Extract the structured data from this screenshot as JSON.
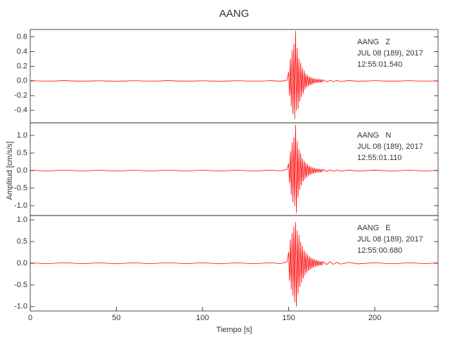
{
  "figure": {
    "title": "AANG",
    "x_label": "Tiempo [s]",
    "y_label": "Amplitud [cm/s/s]"
  },
  "chart_data": [
    {
      "type": "line",
      "annotations": [
        "AANG   Z",
        "JUL 08 (189), 2017",
        "12:55:01.540"
      ],
      "xlim": [
        0,
        236.7
      ],
      "ylim": [
        -0.57,
        0.7
      ],
      "yticks": [
        -0.4,
        -0.2,
        {
          "value": 0,
          "label": "0.0"
        },
        0.2,
        0.4,
        0.6
      ],
      "series": [
        {
          "color": "#ff0000",
          "x": [
            0,
            10,
            20,
            30,
            40,
            50,
            60,
            70,
            80,
            90,
            100,
            110,
            120,
            130,
            140,
            145,
            149,
            150,
            150.5,
            151,
            151.5,
            152,
            152.5,
            153,
            153.5,
            154,
            154.5,
            155,
            155.5,
            156,
            156.5,
            157,
            157.5,
            158,
            158.5,
            159,
            159.5,
            160,
            160.5,
            161,
            161.5,
            162,
            162.5,
            163,
            163.5,
            164,
            164.5,
            165,
            165.5,
            166,
            166.5,
            167,
            167.5,
            168,
            168.5,
            169,
            169.5,
            170,
            172,
            174,
            176,
            178,
            180,
            185,
            190,
            200,
            210,
            220,
            230,
            236
          ],
          "values": [
            0.005,
            -0.004,
            0.006,
            -0.005,
            0.004,
            -0.006,
            0.005,
            -0.004,
            0.006,
            -0.005,
            0.004,
            -0.006,
            0.005,
            -0.004,
            0.006,
            -0.005,
            0.01,
            0.12,
            -0.2,
            0.3,
            -0.35,
            0.42,
            -0.45,
            0.5,
            -0.52,
            0.68,
            -0.4,
            0.45,
            -0.38,
            0.3,
            -0.28,
            0.25,
            -0.22,
            0.18,
            -0.17,
            0.14,
            -0.12,
            0.1,
            -0.09,
            0.08,
            -0.07,
            0.06,
            -0.06,
            0.05,
            -0.05,
            0.04,
            -0.04,
            0.035,
            -0.03,
            0.03,
            -0.025,
            0.025,
            -0.02,
            0.02,
            -0.02,
            0.018,
            -0.015,
            0.015,
            -0.012,
            0.01,
            -0.01,
            0.008,
            -0.008,
            0.007,
            -0.006,
            0.005,
            -0.005,
            0.005,
            -0.004,
            0.004
          ]
        }
      ]
    },
    {
      "type": "line",
      "annotations": [
        "AANG   N",
        "JUL 08 (189), 2017",
        "12:55:01.110"
      ],
      "xlim": [
        0,
        236.7
      ],
      "ylim": [
        -1.28,
        1.36
      ],
      "yticks": [
        {
          "value": -1,
          "label": "-1.0"
        },
        -0.5,
        {
          "value": 0,
          "label": "0.0"
        },
        0.5,
        {
          "value": 1,
          "label": "1.0"
        }
      ],
      "series": [
        {
          "color": "#ff0000",
          "x": [
            0,
            10,
            20,
            30,
            40,
            50,
            60,
            70,
            80,
            90,
            100,
            110,
            120,
            130,
            140,
            145,
            149,
            150,
            150.5,
            151,
            151.5,
            152,
            152.5,
            153,
            153.5,
            154,
            154.5,
            155,
            155.5,
            156,
            156.5,
            157,
            157.5,
            158,
            158.5,
            159,
            159.5,
            160,
            160.5,
            161,
            161.5,
            162,
            162.5,
            163,
            163.5,
            164,
            164.5,
            165,
            165.5,
            166,
            166.5,
            167,
            167.5,
            168,
            168.5,
            169,
            169.5,
            170,
            172,
            174,
            176,
            178,
            180,
            185,
            190,
            200,
            210,
            220,
            230,
            236
          ],
          "values": [
            0.01,
            -0.01,
            0.012,
            -0.01,
            0.01,
            -0.012,
            0.01,
            -0.01,
            0.012,
            -0.01,
            0.01,
            -0.012,
            0.01,
            -0.01,
            0.012,
            -0.01,
            0.03,
            0.2,
            -0.35,
            0.55,
            -0.7,
            0.8,
            -0.9,
            0.95,
            -1.0,
            1.3,
            -1.2,
            0.85,
            -0.75,
            0.6,
            -0.55,
            0.5,
            -0.42,
            0.35,
            -0.3,
            0.28,
            -0.25,
            0.22,
            -0.2,
            0.18,
            -0.15,
            0.14,
            -0.12,
            0.11,
            -0.1,
            0.09,
            -0.08,
            0.07,
            -0.07,
            0.06,
            -0.05,
            0.05,
            -0.045,
            0.04,
            -0.04,
            0.035,
            -0.03,
            0.03,
            -0.025,
            0.02,
            -0.02,
            0.018,
            -0.015,
            0.014,
            -0.012,
            0.011,
            -0.01,
            0.01,
            -0.01,
            0.01
          ]
        }
      ]
    },
    {
      "type": "line",
      "annotations": [
        "AANG   E",
        "JUL 08 (189), 2017",
        "12:55:00.680"
      ],
      "xlim": [
        0,
        236.7
      ],
      "ylim": [
        -1.1,
        1.1
      ],
      "yticks": [
        {
          "value": -1,
          "label": "-1.0"
        },
        -0.5,
        {
          "value": 0,
          "label": "0.0"
        },
        0.5,
        {
          "value": 1,
          "label": "1.0"
        }
      ],
      "xticks": [
        0,
        50,
        100,
        150,
        200
      ],
      "series": [
        {
          "color": "#ff0000",
          "x": [
            0,
            10,
            20,
            30,
            40,
            50,
            60,
            70,
            80,
            90,
            100,
            110,
            120,
            130,
            140,
            145,
            149,
            150,
            150.5,
            151,
            151.5,
            152,
            152.5,
            153,
            153.5,
            154,
            154.5,
            155,
            155.5,
            156,
            156.5,
            157,
            157.5,
            158,
            158.5,
            159,
            159.5,
            160,
            160.5,
            161,
            161.5,
            162,
            162.5,
            163,
            163.5,
            164,
            164.5,
            165,
            165.5,
            166,
            166.5,
            167,
            167.5,
            168,
            168.5,
            169,
            169.5,
            170,
            172,
            174,
            176,
            178,
            180,
            185,
            190,
            200,
            210,
            220,
            230,
            236
          ],
          "values": [
            0.01,
            -0.01,
            0.012,
            -0.01,
            0.01,
            -0.012,
            0.01,
            -0.01,
            0.012,
            -0.01,
            0.01,
            -0.012,
            0.01,
            -0.01,
            0.012,
            -0.01,
            0.03,
            0.25,
            -0.4,
            0.55,
            -0.6,
            0.7,
            -0.75,
            0.85,
            -0.9,
            0.95,
            -1.0,
            0.75,
            -0.7,
            0.65,
            -0.55,
            0.5,
            -0.45,
            0.4,
            -0.35,
            0.3,
            -0.28,
            0.25,
            -0.22,
            0.2,
            -0.18,
            0.16,
            -0.15,
            0.13,
            -0.12,
            0.11,
            -0.1,
            0.09,
            -0.08,
            0.08,
            -0.07,
            0.06,
            -0.06,
            0.05,
            -0.05,
            0.045,
            -0.04,
            0.04,
            -0.03,
            0.03,
            -0.025,
            0.02,
            -0.02,
            0.018,
            -0.015,
            0.012,
            -0.012,
            0.01,
            -0.01,
            0.01
          ]
        }
      ]
    }
  ]
}
